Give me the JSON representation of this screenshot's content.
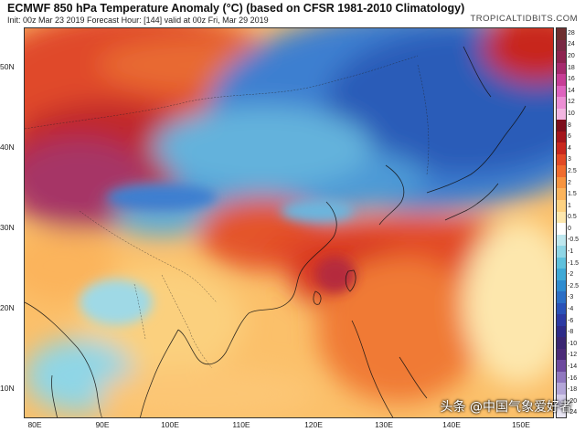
{
  "header": {
    "title": "ECMWF 850 hPa Temperature Anomaly (°C) (based on CFSR 1981-2010 Climatology)",
    "subtitle": "Init: 00z Mar 23 2019   Forecast Hour: [144]   valid at 00z Fri, Mar 29 2019",
    "brand": "TROPICALTIDBITS.COM"
  },
  "axes": {
    "lat_labels": [
      "50N",
      "40N",
      "30N",
      "20N",
      "10N"
    ],
    "lon_labels": [
      "80E",
      "90E",
      "100E",
      "110E",
      "120E",
      "130E",
      "140E",
      "150E"
    ]
  },
  "colorbar": {
    "ticks": [
      "28",
      "24",
      "20",
      "18",
      "16",
      "14",
      "12",
      "10",
      "8",
      "6",
      "4",
      "3",
      "2.5",
      "2",
      "1.5",
      "1",
      "0.5",
      "0",
      "-0.5",
      "-1",
      "-1.5",
      "-2",
      "-2.5",
      "-3",
      "-4",
      "-6",
      "-8",
      "-10",
      "-12",
      "-14",
      "-16",
      "-18",
      "-20",
      "-24"
    ],
    "colors": [
      "#6e2f2f",
      "#7a2a45",
      "#8e2350",
      "#a62a6e",
      "#c73d96",
      "#de63be",
      "#ec8fd4",
      "#f2b6e1",
      "#7d0f1c",
      "#a4161c",
      "#c8281e",
      "#e24a26",
      "#f06c2e",
      "#f7943f",
      "#fbb45c",
      "#fdd282",
      "#fde7ad",
      "#ffffff",
      "#bfe8ef",
      "#8fd6e6",
      "#5fc1dd",
      "#3fa9d6",
      "#2f8cd0",
      "#2c6fc6",
      "#2a52b8",
      "#2c3aa3",
      "#2e2b88",
      "#3a2672",
      "#4b2b78",
      "#6d4a9e",
      "#9078bf",
      "#b3a6d8",
      "#d3cdea",
      "#e9e6f4"
    ]
  },
  "watermark": "头条 @中国气象爱好者"
}
